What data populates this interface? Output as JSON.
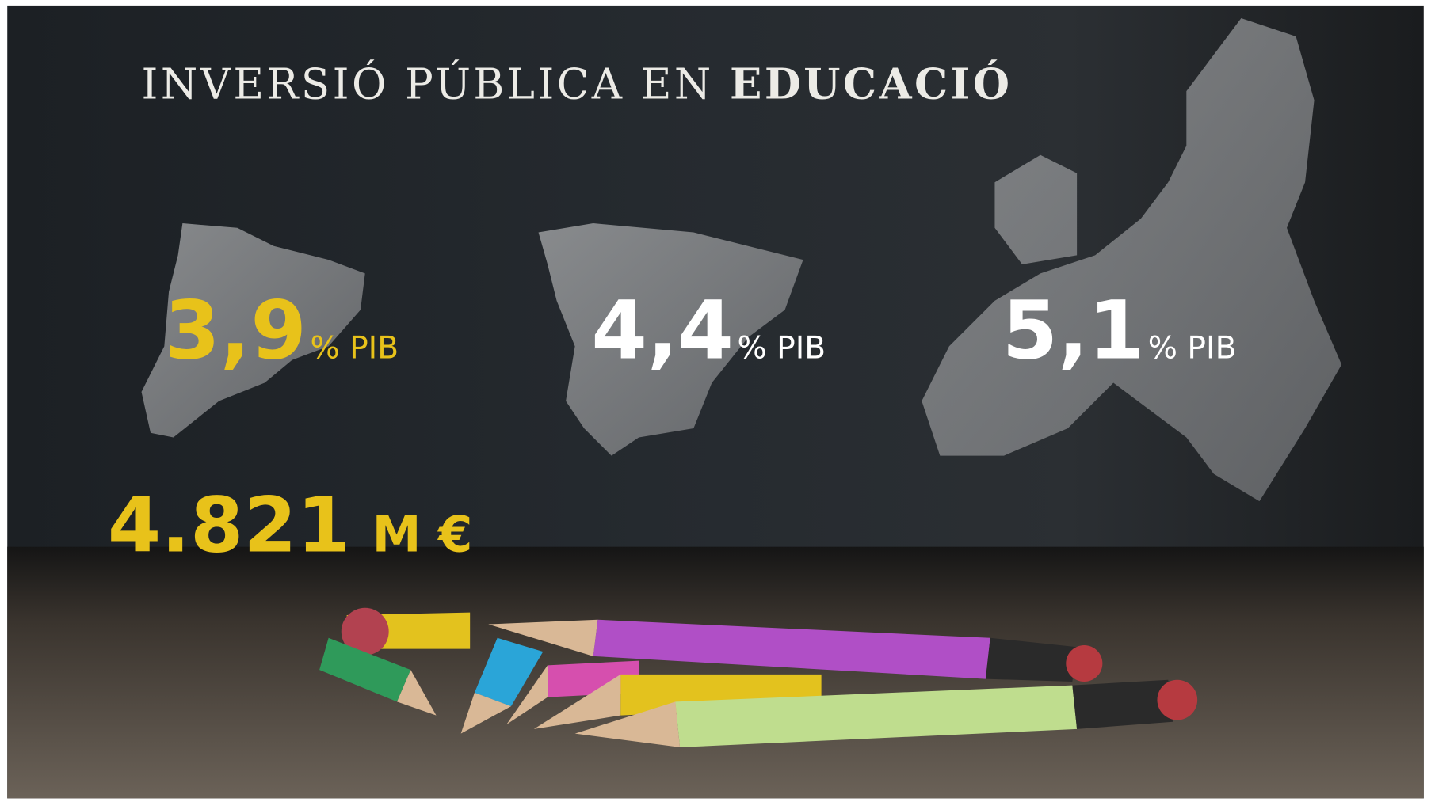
{
  "title": {
    "text": "INVERSIÓ PÚBLICA EN",
    "emphasis": "EDUCACIÓ"
  },
  "stats": [
    {
      "value": "3,9",
      "unit": "% PIB"
    },
    {
      "value": "4,4",
      "unit": "% PIB"
    },
    {
      "value": "5,1",
      "unit": "% PIB"
    }
  ],
  "budget": {
    "value": "4.821",
    "unit": "M €"
  }
}
